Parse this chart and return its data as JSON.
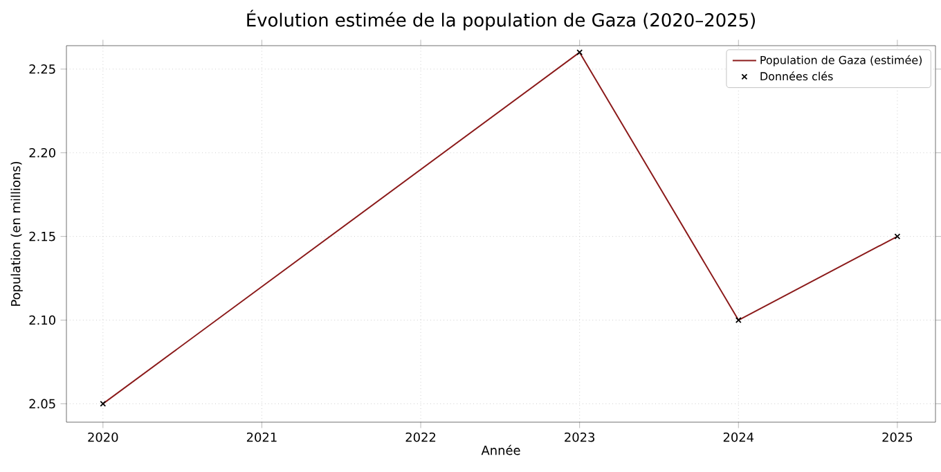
{
  "chart_data": {
    "type": "line",
    "title": "Évolution estimée de la population de Gaza (2020–2025)",
    "xlabel": "Année",
    "ylabel": "Population (en millions)",
    "series": [
      {
        "name": "Population de Gaza (estimée)",
        "color": "#8b1a1a",
        "marker": "none",
        "line_style": "solid",
        "x": [
          2020,
          2023,
          2024,
          2025
        ],
        "values": [
          2.05,
          2.26,
          2.1,
          2.15
        ]
      },
      {
        "name": "Données clés",
        "type": "scatter",
        "color": "#000000",
        "marker": "cross",
        "x": [
          2020,
          2023,
          2024,
          2025
        ],
        "values": [
          2.05,
          2.26,
          2.1,
          2.15
        ]
      }
    ],
    "xlim": [
      2019.77,
      2025.24
    ],
    "ylim": [
      2.039,
      2.264
    ],
    "xticks": [
      2020,
      2021,
      2022,
      2023,
      2024,
      2025
    ],
    "yticks": [
      2.05,
      {
        "value": 2.1,
        "label": "2.10"
      },
      2.15,
      {
        "value": 2.2,
        "label": "2.20"
      },
      2.25
    ],
    "grid": true,
    "legend": "top right"
  }
}
